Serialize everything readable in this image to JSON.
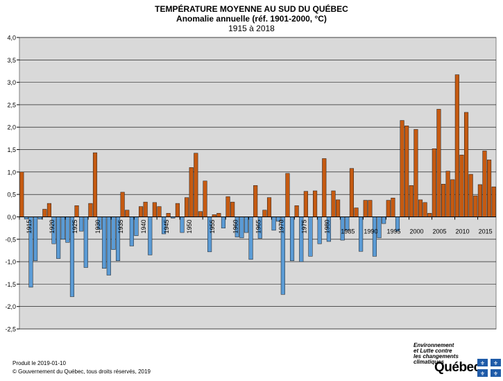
{
  "header": {
    "title": "TEMPÉRATURE MOYENNE AU SUD DU QUÉBEC",
    "subtitle": "Anomalie annuelle (réf. 1901-2000, °C)",
    "period": "1915 à 2018"
  },
  "footer": {
    "produced": "Produit le 2019-01-10",
    "copyright": "© Gouvernement du Québec, tous droits réservés, 2019"
  },
  "logo": {
    "ministry": [
      "Environnement",
      "et Lutte contre",
      "les changements",
      "climatiques"
    ],
    "wordmark": "Québec"
  },
  "colors": {
    "positive": "#C55A11",
    "negative": "#5B9BD5",
    "plot_bg": "#D9D9D9"
  },
  "chart_data": {
    "type": "bar",
    "title": "TEMPÉRATURE MOYENNE AU SUD DU QUÉBEC",
    "subtitle": "Anomalie annuelle (réf. 1901-2000, °C)",
    "period": "1915 à 2018",
    "ylim": [
      -2.5,
      4.0
    ],
    "yticks": [
      "4,0",
      "3,5",
      "3,0",
      "2,5",
      "2,0",
      "1,5",
      "1,0",
      "0,5",
      "0,0",
      "-0,5",
      "-1,0",
      "-1,5",
      "-2,0",
      "-2,5"
    ],
    "xtick_labels": [
      "1915",
      "1920",
      "1925",
      "1930",
      "1935",
      "1940",
      "1945",
      "1950",
      "1955",
      "1960",
      "1965",
      "1970",
      "1975",
      "1980",
      "1985",
      "1990",
      "1995",
      "2000",
      "2005",
      "2010",
      "2015"
    ],
    "grid": true,
    "x": [
      1915,
      1916,
      1917,
      1918,
      1919,
      1920,
      1921,
      1922,
      1923,
      1924,
      1925,
      1926,
      1927,
      1928,
      1929,
      1930,
      1931,
      1932,
      1933,
      1934,
      1935,
      1936,
      1937,
      1938,
      1939,
      1940,
      1941,
      1942,
      1943,
      1944,
      1945,
      1946,
      1947,
      1948,
      1949,
      1950,
      1951,
      1952,
      1953,
      1954,
      1955,
      1956,
      1957,
      1958,
      1959,
      1960,
      1961,
      1962,
      1963,
      1964,
      1965,
      1966,
      1967,
      1968,
      1969,
      1970,
      1971,
      1972,
      1973,
      1974,
      1975,
      1976,
      1977,
      1978,
      1979,
      1980,
      1981,
      1982,
      1983,
      1984,
      1985,
      1986,
      1987,
      1988,
      1989,
      1990,
      1991,
      1992,
      1993,
      1994,
      1995,
      1996,
      1997,
      1998,
      1999,
      2000,
      2001,
      2002,
      2003,
      2004,
      2005,
      2006,
      2007,
      2008,
      2009,
      2010,
      2011,
      2012,
      2013,
      2014,
      2015,
      2016,
      2017,
      2018
    ],
    "values": [
      1.0,
      -0.05,
      -1.57,
      -0.98,
      -0.05,
      0.17,
      0.3,
      -0.6,
      -0.93,
      -0.5,
      -0.57,
      -1.78,
      0.25,
      -0.32,
      -1.13,
      0.3,
      1.43,
      -0.28,
      -1.15,
      -1.3,
      -0.73,
      -0.98,
      0.55,
      0.15,
      -0.65,
      -0.42,
      0.23,
      0.33,
      -0.85,
      0.32,
      0.23,
      -0.38,
      0.08,
      -0.03,
      0.3,
      -0.35,
      0.43,
      1.1,
      1.42,
      0.12,
      0.8,
      -0.78,
      0.05,
      0.08,
      -0.25,
      0.45,
      0.33,
      -0.45,
      -0.47,
      -0.35,
      -0.95,
      0.7,
      -0.48,
      0.15,
      0.43,
      -0.3,
      -0.1,
      -1.73,
      0.97,
      -0.98,
      0.25,
      -1.0,
      0.57,
      -0.88,
      0.58,
      -0.6,
      1.3,
      -0.55,
      0.58,
      0.38,
      -0.52,
      -0.3,
      1.08,
      0.2,
      -0.77,
      0.37,
      0.37,
      -0.88,
      -0.47,
      -0.15,
      0.37,
      0.42,
      -0.32,
      2.15,
      2.03,
      0.7,
      1.95,
      0.38,
      0.32,
      0.08,
      1.52,
      2.4,
      0.73,
      1.02,
      0.83,
      3.17,
      1.38,
      2.33,
      0.95,
      0.47,
      0.72,
      1.47,
      1.27,
      0.67
    ]
  }
}
